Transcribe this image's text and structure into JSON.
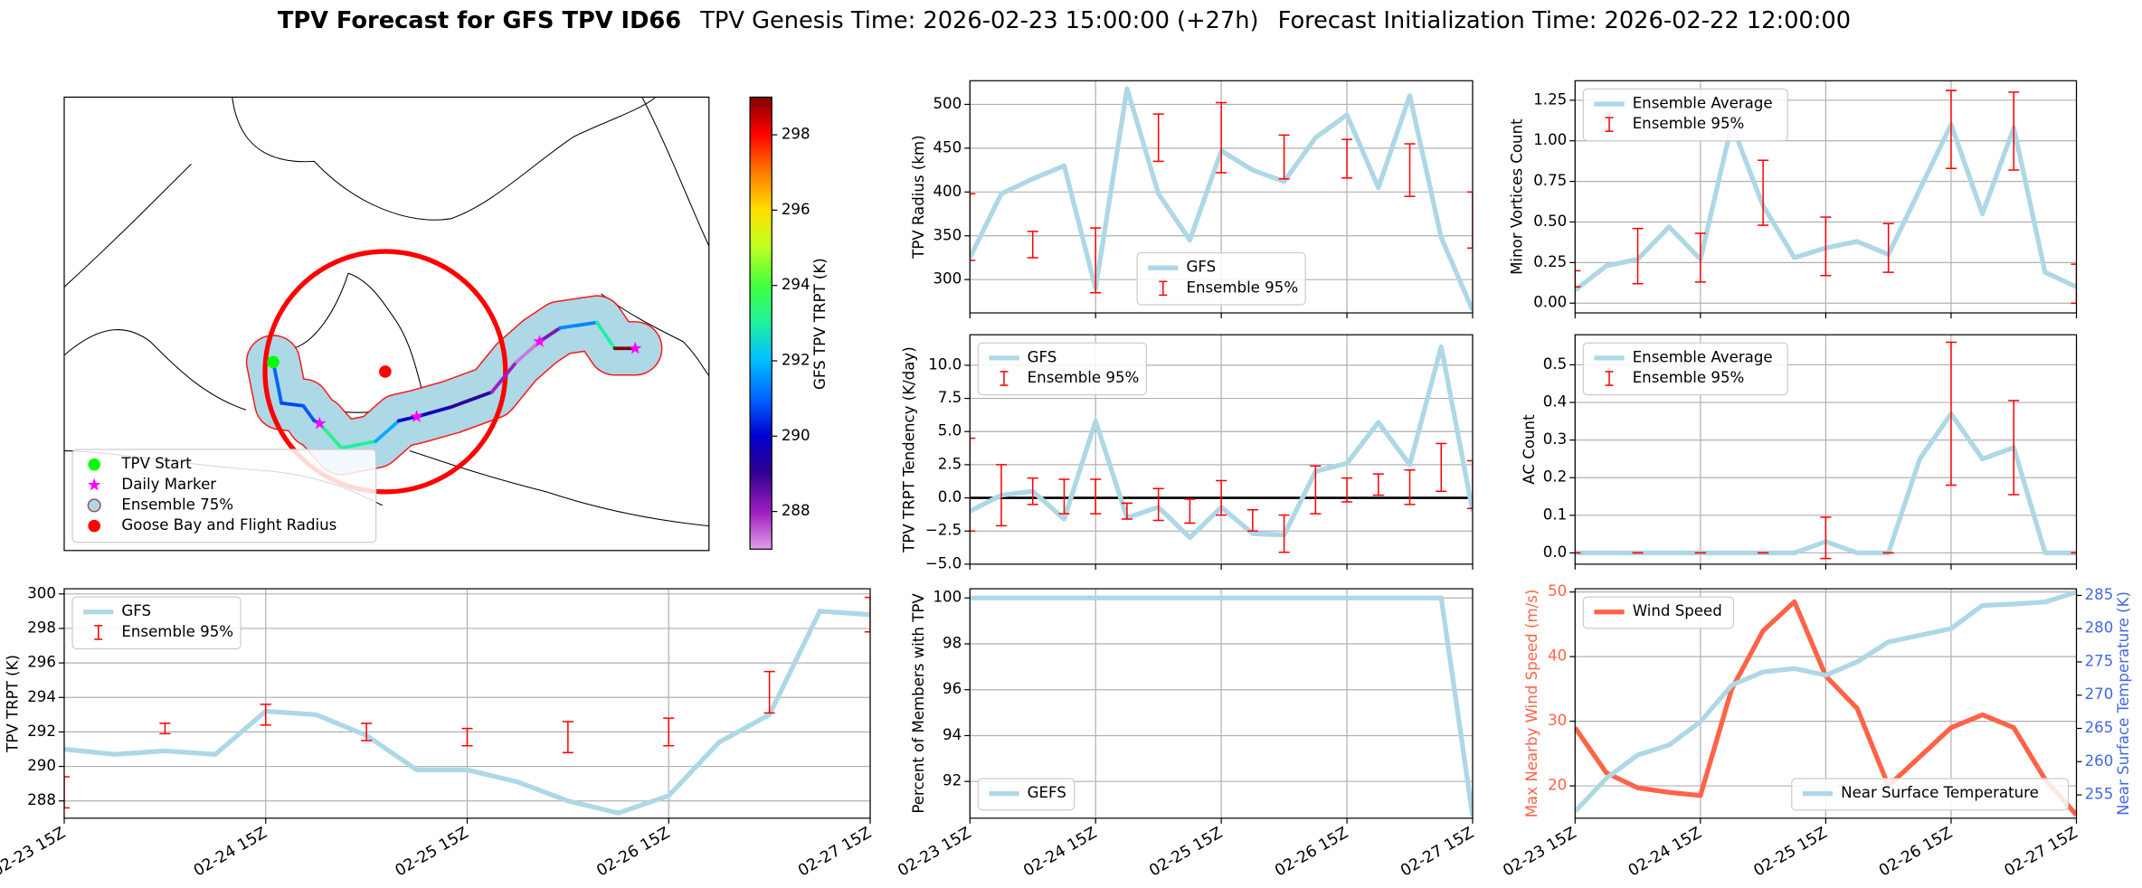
{
  "title": "TPV Forecast for GFS TPV ID66",
  "genesis": "TPV Genesis Time: 2026-02-23 15:00:00 (+27h)",
  "initialization": "Forecast Initialization Time: 2026-02-22 12:00:00",
  "chart_data": [
    {
      "type": "map",
      "legend": "lower left",
      "labels": [
        "TPV Start",
        "Daily Marker",
        "Ensemble 75%",
        "Goose Bay and Flight Radius"
      ],
      "colors": [
        "#00ff00",
        "#ff00ff",
        "#add8e6",
        "#ff0000"
      ],
      "colorbar": {
        "label": "GFS TPV TRPT (K)",
        "lim": [
          287,
          299
        ],
        "ticks": [
          288,
          290,
          292,
          294,
          296,
          298
        ],
        "colormap": "gist_ncar"
      }
    },
    {
      "type": "line",
      "ylabel": "TPV Radius (km)",
      "legend": "lower center",
      "grid": true,
      "x": [
        0,
        6,
        12,
        18,
        24,
        30,
        36,
        42,
        48,
        54,
        60,
        66,
        72,
        78,
        84,
        90,
        96
      ],
      "xlim": [
        0,
        96
      ],
      "xticks": [
        0,
        24,
        48,
        72,
        96
      ],
      "ylim": [
        262,
        527
      ],
      "yticks": [
        300,
        350,
        400,
        450,
        500
      ],
      "series": [
        {
          "name": "GFS",
          "kind": "line",
          "color": "#add8e6",
          "values": [
            325,
            398,
            415,
            430,
            290,
            518,
            398,
            345,
            447,
            425,
            412,
            462,
            488,
            405,
            510,
            348,
            265
          ]
        },
        {
          "name": "Ensemble 95%",
          "kind": "errorbar",
          "color": "#ff0000",
          "values": [
            360,
            null,
            340,
            null,
            322,
            null,
            462,
            null,
            462,
            null,
            440,
            null,
            438,
            null,
            425,
            null,
            368
          ],
          "errors": [
            38,
            null,
            15,
            null,
            37,
            null,
            27,
            null,
            40,
            null,
            25,
            null,
            22,
            null,
            30,
            null,
            32
          ]
        }
      ]
    },
    {
      "type": "line",
      "ylabel": "Minor Vortices Count",
      "legend": "upper left",
      "grid": true,
      "x": [
        0,
        6,
        12,
        18,
        24,
        30,
        36,
        42,
        48,
        54,
        60,
        66,
        72,
        78,
        84,
        90,
        96
      ],
      "xlim": [
        0,
        96
      ],
      "xticks": [
        0,
        24,
        48,
        72,
        96
      ],
      "ylim": [
        -0.06,
        1.37
      ],
      "yticks": [
        {
          "value": 0,
          "label": "0.00"
        },
        {
          "value": 0.25,
          "label": "0.25"
        },
        {
          "value": 0.5,
          "label": "0.50"
        },
        {
          "value": 0.75,
          "label": "0.75"
        },
        {
          "value": 1,
          "label": "1.00"
        },
        {
          "value": 1.25,
          "label": "1.25"
        }
      ],
      "series": [
        {
          "name": "Ensemble Average",
          "kind": "line",
          "color": "#add8e6",
          "values": [
            0.08,
            0.23,
            0.27,
            0.47,
            0.27,
            1.1,
            0.6,
            0.28,
            0.34,
            0.38,
            0.3,
            0.7,
            1.1,
            0.55,
            1.08,
            0.19,
            0.1
          ]
        },
        {
          "name": "Ensemble 95%",
          "kind": "errorbar",
          "color": "#ff0000",
          "values": [
            0.15,
            null,
            0.29,
            null,
            0.28,
            null,
            0.68,
            null,
            0.35,
            null,
            0.34,
            null,
            1.07,
            null,
            1.06,
            null,
            0.12
          ],
          "errors": [
            0.05,
            null,
            0.17,
            null,
            0.15,
            null,
            0.2,
            null,
            0.18,
            null,
            0.15,
            null,
            0.24,
            null,
            0.24,
            null,
            0.12
          ]
        }
      ]
    },
    {
      "type": "line",
      "ylabel": "TPV TRPT Tendency (K/day)",
      "legend": "upper left",
      "grid": true,
      "reference_line": 0,
      "x": [
        0,
        6,
        12,
        18,
        24,
        30,
        36,
        42,
        48,
        54,
        60,
        66,
        72,
        78,
        84,
        90,
        96
      ],
      "xlim": [
        0,
        96
      ],
      "xticks": [
        0,
        24,
        48,
        72,
        96
      ],
      "ylim": [
        -5,
        12.3
      ],
      "yticks": [
        {
          "value": -5,
          "label": "−5.0"
        },
        {
          "value": -2.5,
          "label": "−2.5"
        },
        {
          "value": 0,
          "label": "0.0"
        },
        2.5,
        {
          "value": 5,
          "label": "5.0"
        },
        7.5,
        {
          "value": 10,
          "label": "10.0"
        }
      ],
      "series": [
        {
          "name": "GFS",
          "kind": "line",
          "color": "#add8e6",
          "values": [
            -1.0,
            0.2,
            0.5,
            -1.6,
            5.8,
            -1.5,
            -0.7,
            -3.0,
            -0.7,
            -2.7,
            -2.8,
            2.0,
            2.6,
            5.7,
            2.5,
            11.4,
            -1.0
          ]
        },
        {
          "name": "Ensemble 95%",
          "kind": "errorbar",
          "color": "#ff0000",
          "values": [
            1.0,
            0.2,
            0.5,
            0.1,
            0.1,
            -1.0,
            -0.5,
            -1.0,
            0.0,
            -1.7,
            -2.7,
            0.6,
            0.6,
            1.0,
            0.8,
            2.3,
            1.0
          ],
          "errors": [
            3.5,
            2.3,
            1.0,
            1.3,
            1.3,
            0.6,
            1.2,
            0.9,
            1.3,
            0.8,
            1.4,
            1.8,
            0.9,
            0.8,
            1.3,
            1.8,
            1.8
          ]
        }
      ]
    },
    {
      "type": "line",
      "ylabel": "AC Count",
      "legend": "upper left",
      "grid": true,
      "x": [
        0,
        6,
        12,
        18,
        24,
        30,
        36,
        42,
        48,
        54,
        60,
        66,
        72,
        78,
        84,
        90,
        96
      ],
      "xlim": [
        0,
        96
      ],
      "xticks": [
        0,
        24,
        48,
        72,
        96
      ],
      "ylim": [
        -0.03,
        0.58
      ],
      "yticks": [
        {
          "value": 0,
          "label": "0.0"
        },
        0.1,
        0.2,
        0.3,
        0.4,
        0.5
      ],
      "series": [
        {
          "name": "Ensemble Average",
          "kind": "line",
          "color": "#add8e6",
          "values": [
            0,
            0,
            0,
            0,
            0,
            0,
            0,
            0,
            0.03,
            0,
            0,
            0.25,
            0.37,
            0.25,
            0.28,
            0,
            0
          ]
        },
        {
          "name": "Ensemble 95%",
          "kind": "errorbar",
          "color": "#ff0000",
          "values": [
            0,
            null,
            0,
            null,
            0,
            null,
            0,
            null,
            0.04,
            null,
            0,
            null,
            0.37,
            null,
            0.28,
            null,
            0
          ],
          "errors": [
            0,
            null,
            0,
            null,
            0,
            null,
            0,
            null,
            0.055,
            null,
            0,
            null,
            0.19,
            null,
            0.125,
            null,
            0
          ]
        }
      ]
    },
    {
      "type": "line",
      "ylabel": "TPV TRPT (K)",
      "legend": "upper left",
      "grid": true,
      "x": [
        0,
        6,
        12,
        18,
        24,
        30,
        36,
        42,
        48,
        54,
        60,
        66,
        72,
        78,
        84,
        90,
        96
      ],
      "xlim": [
        0,
        96
      ],
      "xticks": [
        {
          "value": 0,
          "label": "02-23 15Z"
        },
        {
          "value": 24,
          "label": "02-24 15Z"
        },
        {
          "value": 48,
          "label": "02-25 15Z"
        },
        {
          "value": 72,
          "label": "02-26 15Z"
        },
        {
          "value": 96,
          "label": "02-27 15Z"
        }
      ],
      "ylim": [
        287.0,
        300.3
      ],
      "yticks": [
        288,
        290,
        292,
        294,
        296,
        298,
        300
      ],
      "series": [
        {
          "name": "GFS",
          "kind": "line",
          "color": "#add8e6",
          "values": [
            291.0,
            290.7,
            290.9,
            290.7,
            293.2,
            293.0,
            291.8,
            289.8,
            289.8,
            289.1,
            288.0,
            287.3,
            288.3,
            291.4,
            293.0,
            299.0,
            298.8
          ]
        },
        {
          "name": "Ensemble 95%",
          "kind": "errorbar",
          "color": "#ff0000",
          "values": [
            288.5,
            null,
            292.2,
            null,
            293.0,
            null,
            292.0,
            null,
            291.7,
            null,
            291.7,
            null,
            292.0,
            null,
            294.3,
            null,
            298.8
          ],
          "errors": [
            0.9,
            null,
            0.3,
            null,
            0.6,
            null,
            0.5,
            null,
            0.5,
            null,
            0.9,
            null,
            0.8,
            null,
            1.2,
            null,
            1.0
          ]
        }
      ]
    },
    {
      "type": "line",
      "ylabel": "Percent of Members with TPV",
      "legend": "lower left",
      "grid": true,
      "x": [
        0,
        6,
        12,
        18,
        24,
        30,
        36,
        42,
        48,
        54,
        60,
        66,
        72,
        78,
        84,
        90,
        96
      ],
      "xlim": [
        0,
        96
      ],
      "xticks": [
        {
          "value": 0,
          "label": "02-23 15Z"
        },
        {
          "value": 24,
          "label": "02-24 15Z"
        },
        {
          "value": 48,
          "label": "02-25 15Z"
        },
        {
          "value": 72,
          "label": "02-26 15Z"
        },
        {
          "value": 96,
          "label": "02-27 15Z"
        }
      ],
      "ylim": [
        90.4,
        100.4
      ],
      "yticks": [
        92,
        94,
        96,
        98,
        100
      ],
      "series": [
        {
          "name": "GEFS",
          "kind": "line",
          "color": "#add8e6",
          "values": [
            100,
            100,
            100,
            100,
            100,
            100,
            100,
            100,
            100,
            100,
            100,
            100,
            100,
            100,
            100,
            100,
            90.5
          ]
        }
      ]
    },
    {
      "type": "line",
      "ylabel": "Max Nearby Wind Speed (m/s)",
      "y2label": "Near Surface Temperature (K)",
      "ylabel_color": "#ff6347",
      "y2label_color": "#4169e1",
      "legend": [
        "upper left",
        "lower right"
      ],
      "grid": true,
      "x": [
        0,
        6,
        12,
        18,
        24,
        30,
        36,
        42,
        48,
        54,
        60,
        66,
        72,
        78,
        84,
        90,
        96
      ],
      "xlim": [
        0,
        96
      ],
      "xticks": [
        {
          "value": 0,
          "label": "02-23 15Z"
        },
        {
          "value": 24,
          "label": "02-24 15Z"
        },
        {
          "value": 48,
          "label": "02-25 15Z"
        },
        {
          "value": 72,
          "label": "02-26 15Z"
        },
        {
          "value": 96,
          "label": "02-27 15Z"
        }
      ],
      "ylim": [
        15,
        50.5
      ],
      "yticks": [
        20,
        30,
        40,
        50
      ],
      "y2lim": [
        251.5,
        286
      ],
      "y2ticks": [
        255,
        260,
        265,
        270,
        275,
        280,
        285
      ],
      "series": [
        {
          "name": "Wind Speed",
          "kind": "line",
          "color": "#ff6347",
          "values": [
            29,
            22,
            19.7,
            19,
            18.5,
            35,
            44,
            48.5,
            37,
            32,
            20,
            24.5,
            29,
            31,
            29,
            21,
            15.5
          ]
        },
        {
          "name": "Near Surface Temperature",
          "kind": "line",
          "axis": "y2",
          "color": "#add8e6",
          "values": [
            252.5,
            257.5,
            261,
            262.5,
            266,
            271.5,
            273.5,
            274,
            273,
            275,
            278,
            279,
            280,
            283.5,
            283.7,
            284,
            285.5
          ]
        }
      ]
    }
  ]
}
